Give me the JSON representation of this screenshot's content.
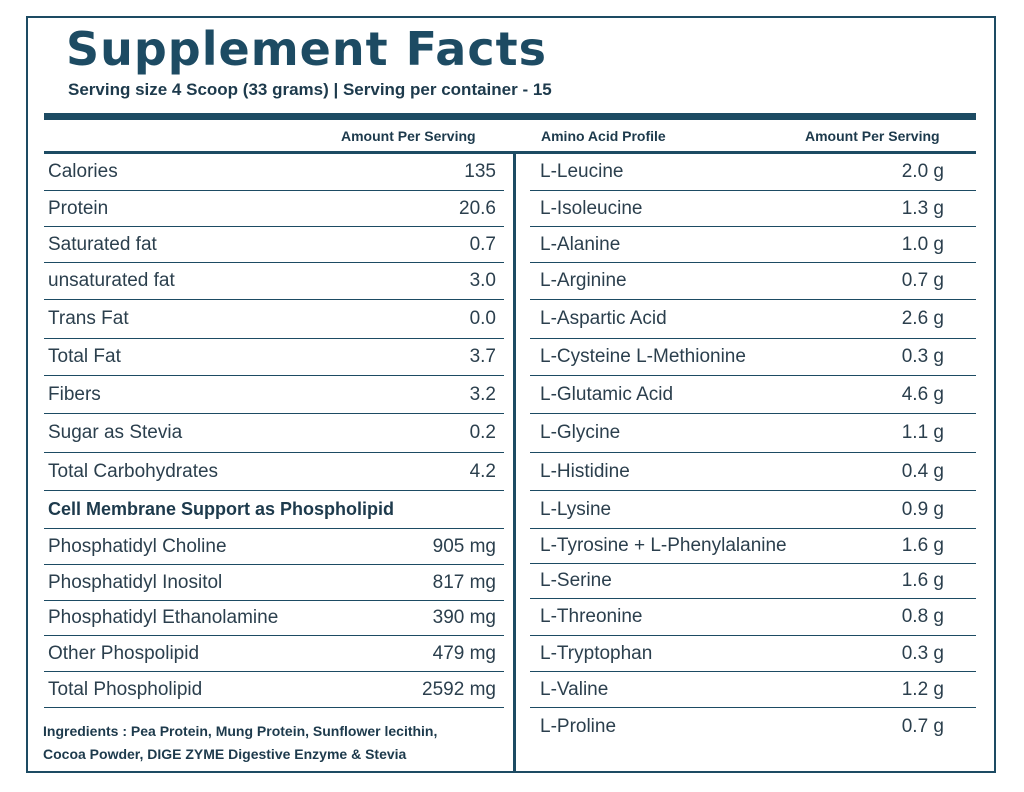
{
  "title": "Supplement Facts",
  "serving_line": "Serving size 4 Scoop (33 grams) | Serving per container - 15",
  "headers": {
    "left_amount": "Amount Per Serving",
    "amino_title": "Amino Acid Profile",
    "right_amount": "Amount Per Serving"
  },
  "nutrients": [
    {
      "label": "Calories",
      "value": "135"
    },
    {
      "label": "Protein",
      "value": "20.6"
    },
    {
      "label": "Saturated fat",
      "value": "0.7"
    },
    {
      "label": "unsaturated fat",
      "value": "3.0"
    },
    {
      "label": "Trans Fat",
      "value": "0.0"
    },
    {
      "label": "Total Fat",
      "value": "3.7"
    },
    {
      "label": "Fibers",
      "value": "3.2"
    },
    {
      "label": "Sugar as Stevia",
      "value": "0.2"
    },
    {
      "label": "Total Carbohydrates",
      "value": "4.2"
    }
  ],
  "phospholipid_heading": "Cell Membrane Support as Phospholipid",
  "phospholipids": [
    {
      "label": "Phosphatidyl Choline",
      "value": "905 mg"
    },
    {
      "label": "Phosphatidyl Inositol",
      "value": "817 mg"
    },
    {
      "label": "Phosphatidyl Ethanolamine",
      "value": "390 mg"
    },
    {
      "label": "Other Phospolipid",
      "value": "479 mg"
    },
    {
      "label": "Total Phospholipid",
      "value": "2592 mg"
    }
  ],
  "ingredients": {
    "line1": "Ingredients : Pea Protein, Mung Protein, Sunflower lecithin,",
    "line2": "Cocoa Powder, DIGE ZYME Digestive Enzyme & Stevia"
  },
  "amino_acids": [
    {
      "label": "L-Leucine",
      "value": "2.0 g"
    },
    {
      "label": "L-Isoleucine",
      "value": "1.3 g"
    },
    {
      "label": "L-Alanine",
      "value": "1.0 g"
    },
    {
      "label": "L-Arginine",
      "value": "0.7 g"
    },
    {
      "label": "L-Aspartic Acid",
      "value": "2.6 g"
    },
    {
      "label": "L-Cysteine L-Methionine",
      "value": "0.3 g"
    },
    {
      "label": "L-Glutamic Acid",
      "value": "4.6 g"
    },
    {
      "label": "L-Glycine",
      "value": "1.1 g"
    },
    {
      "label": "L-Histidine",
      "value": "0.4 g"
    },
    {
      "label": "L-Lysine",
      "value": "0.9 g"
    },
    {
      "label": "L-Tyrosine + L-Phenylalanine",
      "value": "1.6 g"
    },
    {
      "label": "L-Serine",
      "value": "1.6 g"
    },
    {
      "label": "L-Threonine",
      "value": "0.8 g"
    },
    {
      "label": "L-Tryptophan",
      "value": "0.3 g"
    },
    {
      "label": "L-Valine",
      "value": "1.2 g"
    },
    {
      "label": "L-Proline",
      "value": "0.7 g"
    }
  ],
  "colors": {
    "accent": "#1d4b63",
    "text": "#2b3f4d"
  }
}
